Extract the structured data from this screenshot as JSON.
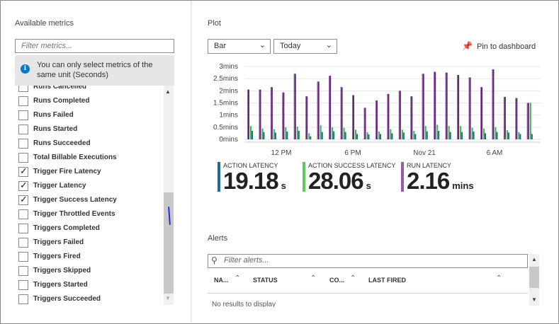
{
  "left_panel": {
    "title": "Available metrics",
    "filter_placeholder": "Filter metrics...",
    "info_message": "You can only select metrics of the same unit (Seconds)",
    "metrics": [
      {
        "label": "Runs Cancelled",
        "checked": false
      },
      {
        "label": "Runs Completed",
        "checked": false
      },
      {
        "label": "Runs Failed",
        "checked": false
      },
      {
        "label": "Runs Started",
        "checked": false
      },
      {
        "label": "Runs Succeeded",
        "checked": false
      },
      {
        "label": "Total Billable Executions",
        "checked": false
      },
      {
        "label": "Trigger Fire Latency",
        "checked": true
      },
      {
        "label": "Trigger Latency",
        "checked": true
      },
      {
        "label": "Trigger Success Latency",
        "checked": true
      },
      {
        "label": "Trigger Throttled Events",
        "checked": false
      },
      {
        "label": "Triggers Completed",
        "checked": false
      },
      {
        "label": "Triggers Failed",
        "checked": false
      },
      {
        "label": "Triggers Fired",
        "checked": false
      },
      {
        "label": "Triggers Skipped",
        "checked": false
      },
      {
        "label": "Triggers Started",
        "checked": false
      },
      {
        "label": "Triggers Succeeded",
        "checked": false
      }
    ]
  },
  "plot": {
    "title": "Plot",
    "chart_type_select": "Bar",
    "time_range_select": "Today",
    "pin_label": "Pin to dashboard"
  },
  "chart_data": {
    "type": "bar",
    "y_ticks": [
      "0mins",
      "0.5mins",
      "1mins",
      "1.5mins",
      "2mins",
      "2.5mins",
      "3mins"
    ],
    "ylim": [
      0,
      3
    ],
    "x_ticks": [
      "12 PM",
      "6 PM",
      "Nov 21",
      "6 AM"
    ],
    "series": [
      {
        "name": "RUN LATENCY",
        "color": "#5c2d6e",
        "accent": "#a05fb5",
        "values": [
          2.05,
          2.05,
          2.15,
          1.93,
          2.7,
          1.77,
          2.38,
          2.62,
          2.15,
          1.82,
          1.3,
          1.6,
          1.87,
          2.0,
          1.77,
          2.7,
          2.78,
          2.75,
          2.65,
          2.55,
          2.15,
          2.88,
          1.75,
          1.7,
          1.5
        ]
      },
      {
        "name": "ACTION SUCCESS LATENCY",
        "color": "#3cb44b",
        "values": [
          0.55,
          0.45,
          0.42,
          0.5,
          0.52,
          0.25,
          0.58,
          0.5,
          0.48,
          0.4,
          0.3,
          0.32,
          0.42,
          0.4,
          0.35,
          0.55,
          0.6,
          0.55,
          0.55,
          0.48,
          0.45,
          0.5,
          0.38,
          0.3,
          1.5
        ]
      },
      {
        "name": "ACTION LATENCY",
        "color": "#1a6b8c",
        "values": [
          0.35,
          0.3,
          0.28,
          0.32,
          0.35,
          0.12,
          0.3,
          0.33,
          0.3,
          0.22,
          0.2,
          0.22,
          0.25,
          0.28,
          0.22,
          0.33,
          0.35,
          0.3,
          0.3,
          0.32,
          0.25,
          0.3,
          0.28,
          0.22,
          0.22
        ]
      }
    ]
  },
  "legend": [
    {
      "name": "ACTION LATENCY",
      "value": "19.18",
      "unit": "s",
      "color": "#1f6b94"
    },
    {
      "name": "ACTION SUCCESS LATENCY",
      "value": "28.06",
      "unit": "s",
      "color": "#5fc95f"
    },
    {
      "name": "RUN LATENCY",
      "value": "2.16",
      "unit": "mins",
      "color": "#9b59a6"
    }
  ],
  "alerts": {
    "title": "Alerts",
    "search_placeholder": "Filter alerts...",
    "columns": [
      "NA...",
      "STATUS",
      "CO...",
      "LAST FIRED"
    ],
    "empty_message": "No results to display"
  }
}
